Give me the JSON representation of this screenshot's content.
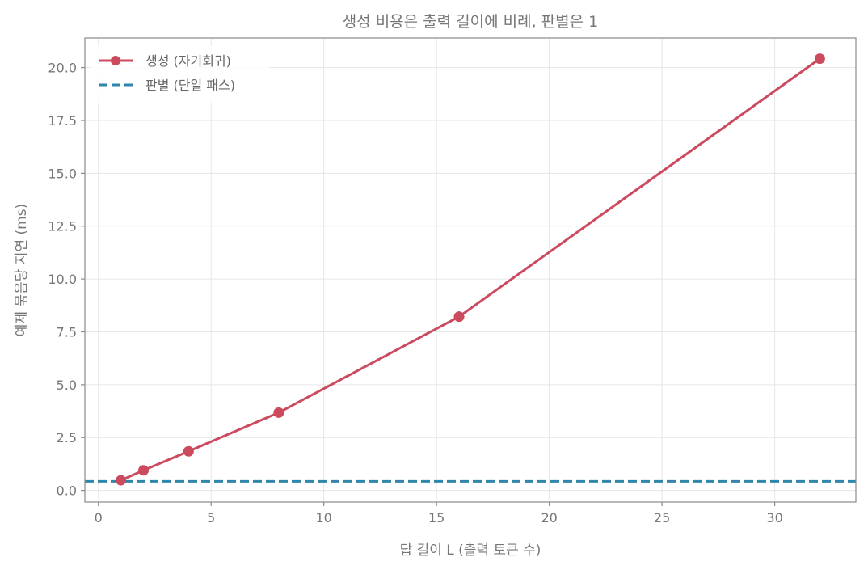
{
  "chart_data": {
    "type": "line",
    "title": "생성 비용은 출력 길이에 비례, 판별은 1",
    "xlabel": "답 길이 L (출력 토큰 수)",
    "ylabel": "예제 묶음당 지연 (ms)",
    "xlim": [
      -0.6,
      33.6
    ],
    "ylim": [
      -0.55,
      21.4
    ],
    "xticks": [
      0,
      5,
      10,
      15,
      20,
      25,
      30
    ],
    "yticks": [
      0.0,
      2.5,
      5.0,
      7.5,
      10.0,
      12.5,
      15.0,
      17.5,
      20.0
    ],
    "xtick_labels": [
      "0",
      "5",
      "10",
      "15",
      "20",
      "25",
      "30"
    ],
    "ytick_labels": [
      "0.0",
      "2.5",
      "5.0",
      "7.5",
      "10.0",
      "12.5",
      "15.0",
      "17.5",
      "20.0"
    ],
    "grid": true,
    "legend_position": "top-left",
    "series": [
      {
        "name": "생성 (자기회귀)",
        "style": "solid-with-markers",
        "color": "#cc4a5e",
        "x": [
          1,
          2,
          4,
          8,
          16,
          32
        ],
        "y": [
          0.48,
          0.95,
          1.85,
          3.68,
          8.22,
          20.42
        ]
      },
      {
        "name": "판별 (단일 패스)",
        "style": "dashed-horizontal",
        "color": "#2e86ab",
        "y": 0.43
      }
    ]
  }
}
